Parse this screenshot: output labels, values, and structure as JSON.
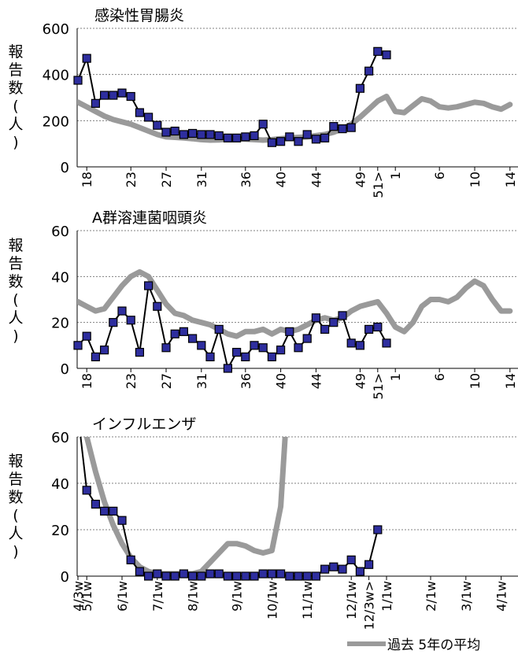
{
  "colors": {
    "observed_fill": "#2e2e9e",
    "observed_line": "#000000",
    "avg_line": "#9a9a9a",
    "grid": "#808080"
  },
  "charts": [
    {
      "title": "感染性胃腸炎",
      "ylabel": "報告数(人)",
      "ylim": [
        0,
        600
      ],
      "yticks": [
        0,
        200,
        400,
        600
      ],
      "xticks": [
        {
          "i": 1,
          "label": "18"
        },
        {
          "i": 6,
          "label": "23"
        },
        {
          "i": 10,
          "label": "27"
        },
        {
          "i": 14,
          "label": "31"
        },
        {
          "i": 19,
          "label": "36"
        },
        {
          "i": 23,
          "label": "40"
        },
        {
          "i": 27,
          "label": "44"
        },
        {
          "i": 32,
          "label": "49"
        },
        {
          "i": 34,
          "label": "51>"
        },
        {
          "i": 36,
          "label": "1"
        },
        {
          "i": 41,
          "label": "6"
        },
        {
          "i": 45,
          "label": "10"
        },
        {
          "i": 49,
          "label": "14"
        }
      ],
      "observed": [
        375,
        470,
        275,
        310,
        310,
        320,
        305,
        235,
        215,
        180,
        150,
        155,
        140,
        145,
        140,
        140,
        135,
        125,
        125,
        130,
        135,
        185,
        105,
        110,
        130,
        110,
        140,
        120,
        125,
        175,
        165,
        170,
        340,
        415,
        500,
        485
      ],
      "average": [
        280,
        260,
        240,
        220,
        205,
        195,
        185,
        170,
        155,
        140,
        130,
        128,
        125,
        122,
        118,
        116,
        117,
        120,
        122,
        120,
        118,
        116,
        118,
        122,
        125,
        128,
        130,
        135,
        140,
        150,
        165,
        185,
        215,
        250,
        285,
        305,
        240,
        235,
        265,
        295,
        285,
        260,
        255,
        260,
        270,
        280,
        275,
        260,
        250,
        270
      ]
    },
    {
      "title": "A群溶連菌咽頭炎",
      "ylabel": "報告数(人)",
      "ylim": [
        0,
        60
      ],
      "yticks": [
        0,
        20,
        40,
        60
      ],
      "xticks": [
        {
          "i": 1,
          "label": "18"
        },
        {
          "i": 6,
          "label": "23"
        },
        {
          "i": 10,
          "label": "27"
        },
        {
          "i": 14,
          "label": "31"
        },
        {
          "i": 19,
          "label": "36"
        },
        {
          "i": 23,
          "label": "40"
        },
        {
          "i": 27,
          "label": "44"
        },
        {
          "i": 32,
          "label": "49"
        },
        {
          "i": 34,
          "label": "51>"
        },
        {
          "i": 36,
          "label": "1"
        },
        {
          "i": 41,
          "label": "6"
        },
        {
          "i": 45,
          "label": "10"
        },
        {
          "i": 49,
          "label": "14"
        }
      ],
      "observed": [
        10,
        14,
        5,
        8,
        20,
        25,
        21,
        7,
        36,
        27,
        9,
        15,
        16,
        13,
        10,
        5,
        17,
        0,
        7,
        5,
        10,
        9,
        5,
        8,
        16,
        9,
        13,
        22,
        17,
        20,
        23,
        11,
        10,
        17,
        18,
        11
      ],
      "average": [
        29,
        27,
        25,
        26,
        31,
        36,
        40,
        42,
        40,
        34,
        28,
        24,
        23,
        21,
        20,
        19,
        17,
        15,
        14,
        16,
        16,
        17,
        15,
        17,
        16,
        17,
        19,
        21,
        22,
        21,
        22,
        25,
        27,
        28,
        29,
        24,
        18,
        16,
        20,
        27,
        30,
        30,
        29,
        31,
        35,
        38,
        36,
        30,
        25,
        25
      ]
    },
    {
      "title": "インフルエンザ",
      "ylabel": "報告数(人)",
      "ylim": [
        0,
        60
      ],
      "yticks": [
        0,
        20,
        40,
        60
      ],
      "xticks": [
        {
          "i": 0,
          "label": "4/3w"
        },
        {
          "i": 1,
          "label": "5/1w"
        },
        {
          "i": 5,
          "label": "6/1w"
        },
        {
          "i": 9,
          "label": "7/1w"
        },
        {
          "i": 13,
          "label": "8/1w"
        },
        {
          "i": 18,
          "label": "9/1w"
        },
        {
          "i": 22,
          "label": "10/1w"
        },
        {
          "i": 26,
          "label": "11/1w"
        },
        {
          "i": 31,
          "label": "12/1w"
        },
        {
          "i": 33,
          "label": "12/3w>"
        },
        {
          "i": 35,
          "label": "1/1w"
        },
        {
          "i": 40,
          "label": "2/1w"
        },
        {
          "i": 44,
          "label": "3/1w"
        },
        {
          "i": 48,
          "label": "4/1w"
        }
      ],
      "observed": [
        70,
        37,
        31,
        28,
        28,
        24,
        7,
        2,
        0,
        1,
        0,
        0,
        1,
        0,
        0,
        1,
        1,
        0,
        0,
        0,
        0,
        1,
        1,
        1,
        0,
        0,
        0,
        0,
        3,
        4,
        3,
        7,
        2,
        5,
        20
      ],
      "average": [
        90,
        60,
        45,
        32,
        22,
        14,
        8,
        4,
        2,
        1,
        1,
        1,
        1,
        1,
        2,
        6,
        10,
        14,
        14,
        13,
        11,
        10,
        11,
        30,
        90
      ]
    }
  ],
  "legend": {
    "avg_label": "過去 5年の平均"
  }
}
